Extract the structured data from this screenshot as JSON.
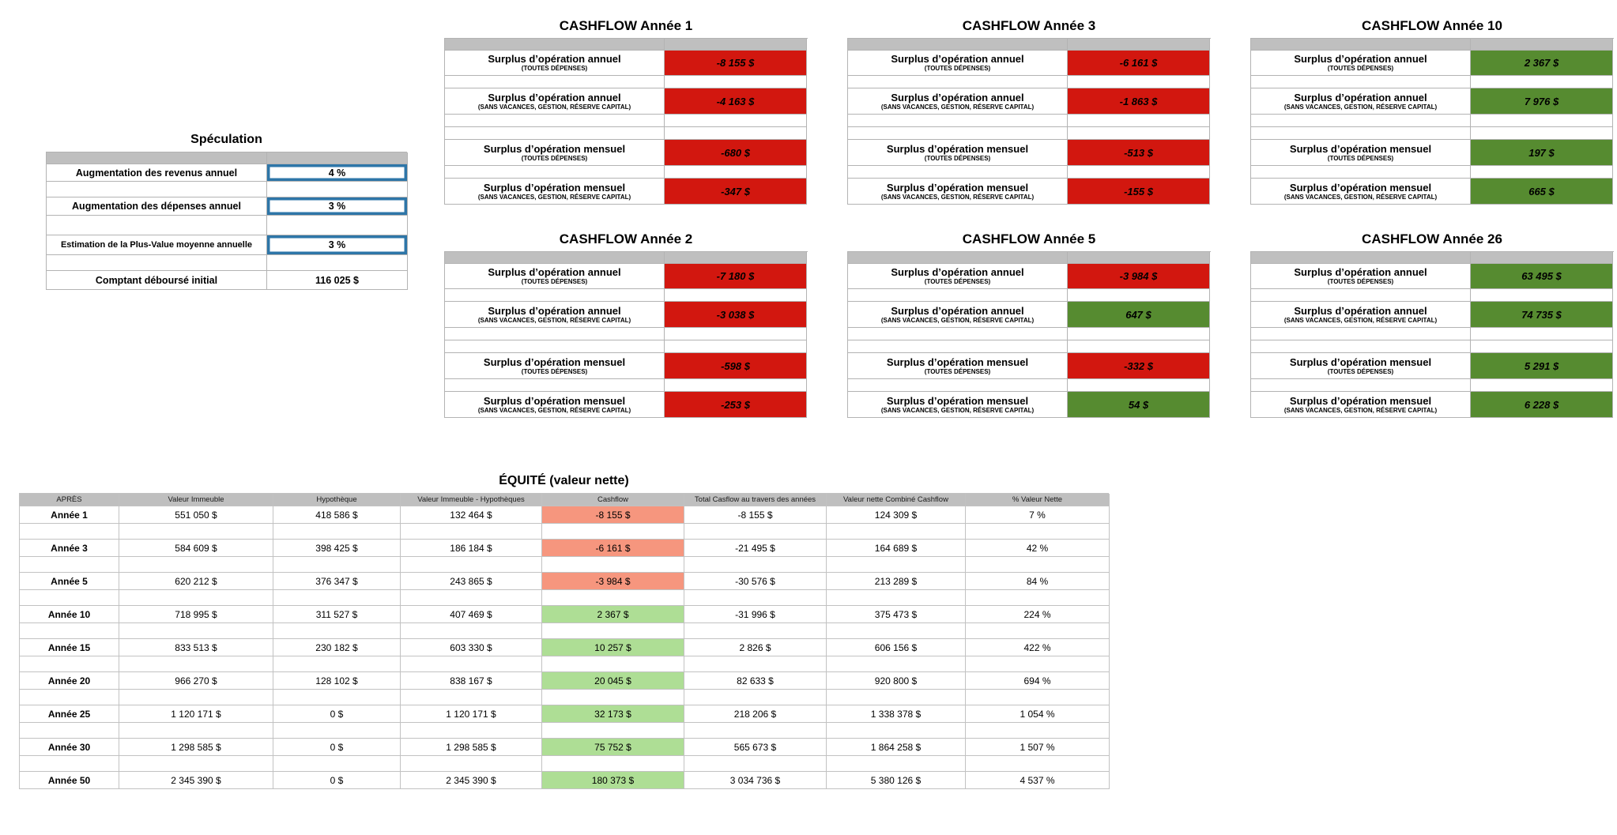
{
  "speculation": {
    "title": "Spéculation",
    "rows": [
      {
        "label": "Augmentation des revenus annuel",
        "value": "4 %",
        "highlighted": true
      },
      {
        "label": "Augmentation des dépenses annuel",
        "value": "3 %",
        "highlighted": true
      },
      {
        "label": "Estimation de la Plus-Value moyenne annuelle",
        "value": "3 %",
        "highlighted": true
      },
      {
        "label": "Comptant déboursé  initial",
        "value": "116 025 $",
        "highlighted": false
      }
    ]
  },
  "cashflow_row_labels": [
    {
      "main": "Surplus d’opération annuel",
      "sub": "(TOUTES DÉPENSES)"
    },
    {
      "main": "Surplus d’opération annuel",
      "sub": "(SANS VACANCES, GESTION, RÉSERVE CAPITAL)"
    },
    {
      "main": "Surplus d’opération mensuel",
      "sub": "(TOUTES DÉPENSES)"
    },
    {
      "main": "Surplus d’opération mensuel",
      "sub": "(SANS VACANCES, GESTION, RÉSERVE CAPITAL)"
    }
  ],
  "cashflow_tables": [
    {
      "title": "CASHFLOW Année 1",
      "values": [
        "-8 155 $",
        "-4 163 $",
        "-680 $",
        "-347 $"
      ],
      "signs": [
        "neg",
        "neg",
        "neg",
        "neg"
      ]
    },
    {
      "title": "CASHFLOW Année 2",
      "values": [
        "-7 180 $",
        "-3 038 $",
        "-598 $",
        "-253 $"
      ],
      "signs": [
        "neg",
        "neg",
        "neg",
        "neg"
      ]
    },
    {
      "title": "CASHFLOW Année 3",
      "values": [
        "-6 161 $",
        "-1 863 $",
        "-513 $",
        "-155 $"
      ],
      "signs": [
        "neg",
        "neg",
        "neg",
        "neg"
      ]
    },
    {
      "title": "CASHFLOW Année 5",
      "values": [
        "-3 984 $",
        "647 $",
        "-332 $",
        "54 $"
      ],
      "signs": [
        "neg",
        "pos",
        "neg",
        "pos"
      ]
    },
    {
      "title": "CASHFLOW Année 10",
      "values": [
        "2 367 $",
        "7 976 $",
        "197 $",
        "665 $"
      ],
      "signs": [
        "pos",
        "pos",
        "pos",
        "pos"
      ]
    },
    {
      "title": "CASHFLOW Année 26",
      "values": [
        "63 495 $",
        "74 735 $",
        "5 291 $",
        "6 228 $"
      ],
      "signs": [
        "pos",
        "pos",
        "pos",
        "pos"
      ]
    }
  ],
  "equity": {
    "title": "ÉQUITÉ (valeur nette)",
    "headers": [
      "APRÈS",
      "Valeur Immeuble",
      "Hypothèque",
      "Valeur Immeuble - Hypothèques",
      "Cashflow",
      "Total Casflow au travers des années",
      "Valeur nette Combiné Cashflow",
      "% Valeur Nette"
    ],
    "rows": [
      {
        "annee": "Année 1",
        "valeur_immeuble": "551 050 $",
        "hypotheque": "418 586 $",
        "vi_hyp": "132 464 $",
        "cashflow": "-8 155 $",
        "cashflow_sign": "neg",
        "total_cashflow": "-8 155 $",
        "valeur_nette": "124 309 $",
        "pct": "7 %"
      },
      {
        "annee": "Année 3",
        "valeur_immeuble": "584 609 $",
        "hypotheque": "398 425 $",
        "vi_hyp": "186 184 $",
        "cashflow": "-6 161 $",
        "cashflow_sign": "neg",
        "total_cashflow": "-21 495 $",
        "valeur_nette": "164 689 $",
        "pct": "42 %"
      },
      {
        "annee": "Année 5",
        "valeur_immeuble": "620 212 $",
        "hypotheque": "376 347 $",
        "vi_hyp": "243 865 $",
        "cashflow": "-3 984 $",
        "cashflow_sign": "neg",
        "total_cashflow": "-30 576 $",
        "valeur_nette": "213 289 $",
        "pct": "84 %"
      },
      {
        "annee": "Année 10",
        "valeur_immeuble": "718 995 $",
        "hypotheque": "311 527 $",
        "vi_hyp": "407 469 $",
        "cashflow": "2 367 $",
        "cashflow_sign": "pos",
        "total_cashflow": "-31 996 $",
        "valeur_nette": "375 473 $",
        "pct": "224 %"
      },
      {
        "annee": "Année 15",
        "valeur_immeuble": "833 513 $",
        "hypotheque": "230 182 $",
        "vi_hyp": "603 330 $",
        "cashflow": "10 257 $",
        "cashflow_sign": "pos",
        "total_cashflow": "2 826 $",
        "valeur_nette": "606 156 $",
        "pct": "422 %"
      },
      {
        "annee": "Année 20",
        "valeur_immeuble": "966 270 $",
        "hypotheque": "128 102 $",
        "vi_hyp": "838 167 $",
        "cashflow": "20 045 $",
        "cashflow_sign": "pos",
        "total_cashflow": "82 633 $",
        "valeur_nette": "920 800 $",
        "pct": "694 %"
      },
      {
        "annee": "Année 25",
        "valeur_immeuble": "1 120 171 $",
        "hypotheque": "0 $",
        "vi_hyp": "1 120 171 $",
        "cashflow": "32 173 $",
        "cashflow_sign": "pos",
        "total_cashflow": "218 206 $",
        "valeur_nette": "1 338 378 $",
        "pct": "1 054 %"
      },
      {
        "annee": "Année 30",
        "valeur_immeuble": "1 298 585 $",
        "hypotheque": "0 $",
        "vi_hyp": "1 298 585 $",
        "cashflow": "75 752 $",
        "cashflow_sign": "pos",
        "total_cashflow": "565 673 $",
        "valeur_nette": "1 864 258 $",
        "pct": "1 507 %"
      },
      {
        "annee": "Année 50",
        "valeur_immeuble": "2 345 390 $",
        "hypotheque": "0 $",
        "vi_hyp": "2 345 390 $",
        "cashflow": "180 373 $",
        "cashflow_sign": "pos",
        "total_cashflow": "3 034 736 $",
        "valeur_nette": "5 380 126 $",
        "pct": "4 537 %"
      }
    ]
  },
  "colors": {
    "negative_bg": "#d2170f",
    "positive_bg": "#568b30",
    "negative_light_bg": "#f6967e",
    "positive_light_bg": "#aede95",
    "header_gray": "#bfbfbf",
    "input_border_blue": "#2e76a8"
  }
}
